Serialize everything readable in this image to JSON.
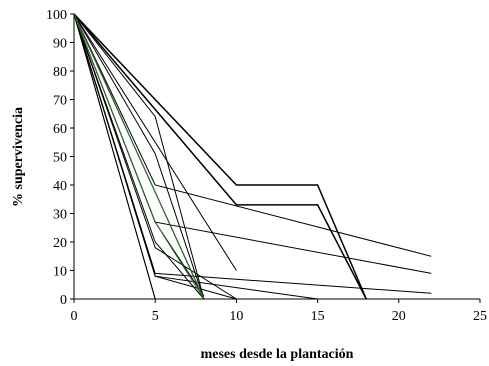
{
  "chart_data": {
    "type": "line",
    "title": "",
    "xlabel": "meses desde la plantación",
    "ylabel": "% supervivencia",
    "xlim": [
      0,
      25
    ],
    "ylim": [
      0,
      100
    ],
    "xticks": [
      0,
      5,
      10,
      15,
      20,
      25
    ],
    "yticks": [
      0,
      10,
      20,
      30,
      40,
      50,
      60,
      70,
      80,
      90,
      100
    ],
    "grid": false,
    "legend": "none",
    "series": [
      {
        "color": "#000000",
        "width": 1.5,
        "points": [
          [
            0,
            100
          ],
          [
            10,
            40
          ],
          [
            15,
            40
          ],
          [
            18,
            0
          ]
        ]
      },
      {
        "color": "#000000",
        "width": 1.5,
        "points": [
          [
            0,
            100
          ],
          [
            10,
            33
          ],
          [
            15,
            33
          ],
          [
            18,
            0
          ]
        ]
      },
      {
        "color": "#000000",
        "width": 1.0,
        "points": [
          [
            0,
            100
          ],
          [
            5,
            40
          ],
          [
            22,
            15
          ]
        ]
      },
      {
        "color": "#000000",
        "width": 1.0,
        "points": [
          [
            0,
            100
          ],
          [
            5,
            27
          ],
          [
            22,
            9
          ]
        ]
      },
      {
        "color": "#000000",
        "width": 1.0,
        "points": [
          [
            0,
            100
          ],
          [
            5,
            9
          ],
          [
            22,
            2
          ]
        ]
      },
      {
        "color": "#000000",
        "width": 1.0,
        "points": [
          [
            0,
            100
          ],
          [
            5,
            64
          ],
          [
            8,
            0
          ]
        ]
      },
      {
        "color": "#000000",
        "width": 1.0,
        "points": [
          [
            0,
            100
          ],
          [
            5,
            51
          ],
          [
            8,
            0
          ]
        ]
      },
      {
        "color": "#000000",
        "width": 1.0,
        "points": [
          [
            0,
            100
          ],
          [
            5,
            27
          ],
          [
            8,
            1
          ]
        ]
      },
      {
        "color": "#000000",
        "width": 1.0,
        "points": [
          [
            0,
            100
          ],
          [
            5,
            20
          ],
          [
            8,
            0
          ]
        ]
      },
      {
        "color": "#000000",
        "width": 1.0,
        "points": [
          [
            0,
            100
          ],
          [
            5,
            8
          ],
          [
            10,
            4
          ],
          [
            15,
            0
          ]
        ]
      },
      {
        "color": "#000000",
        "width": 1.0,
        "points": [
          [
            0,
            100
          ],
          [
            10,
            10
          ]
        ]
      },
      {
        "color": "#000000",
        "width": 1.0,
        "points": [
          [
            0,
            100
          ],
          [
            10,
            33
          ]
        ]
      },
      {
        "color": "#000000",
        "width": 1.0,
        "points": [
          [
            0,
            100
          ],
          [
            5,
            18
          ],
          [
            10,
            0
          ]
        ]
      },
      {
        "color": "#000000",
        "width": 1.0,
        "points": [
          [
            0,
            100
          ],
          [
            5,
            8
          ],
          [
            10,
            0
          ]
        ]
      },
      {
        "color": "#000000",
        "width": 1.0,
        "points": [
          [
            0,
            100
          ],
          [
            5,
            0
          ],
          [
            10,
            0
          ]
        ]
      },
      {
        "color": "#000000",
        "width": 1.0,
        "points": [
          [
            0,
            100
          ],
          [
            5,
            0
          ]
        ]
      },
      {
        "color": "#000000",
        "width": 1.0,
        "points": [
          [
            0,
            100
          ],
          [
            8,
            0
          ]
        ]
      },
      {
        "color": "#2e6b2e",
        "width": 1.2,
        "points": [
          [
            0,
            100
          ],
          [
            8,
            0
          ]
        ]
      },
      {
        "color": "#2e6b2e",
        "width": 1.0,
        "points": [
          [
            0,
            100
          ],
          [
            5,
            27
          ],
          [
            8,
            0
          ]
        ]
      }
    ]
  }
}
